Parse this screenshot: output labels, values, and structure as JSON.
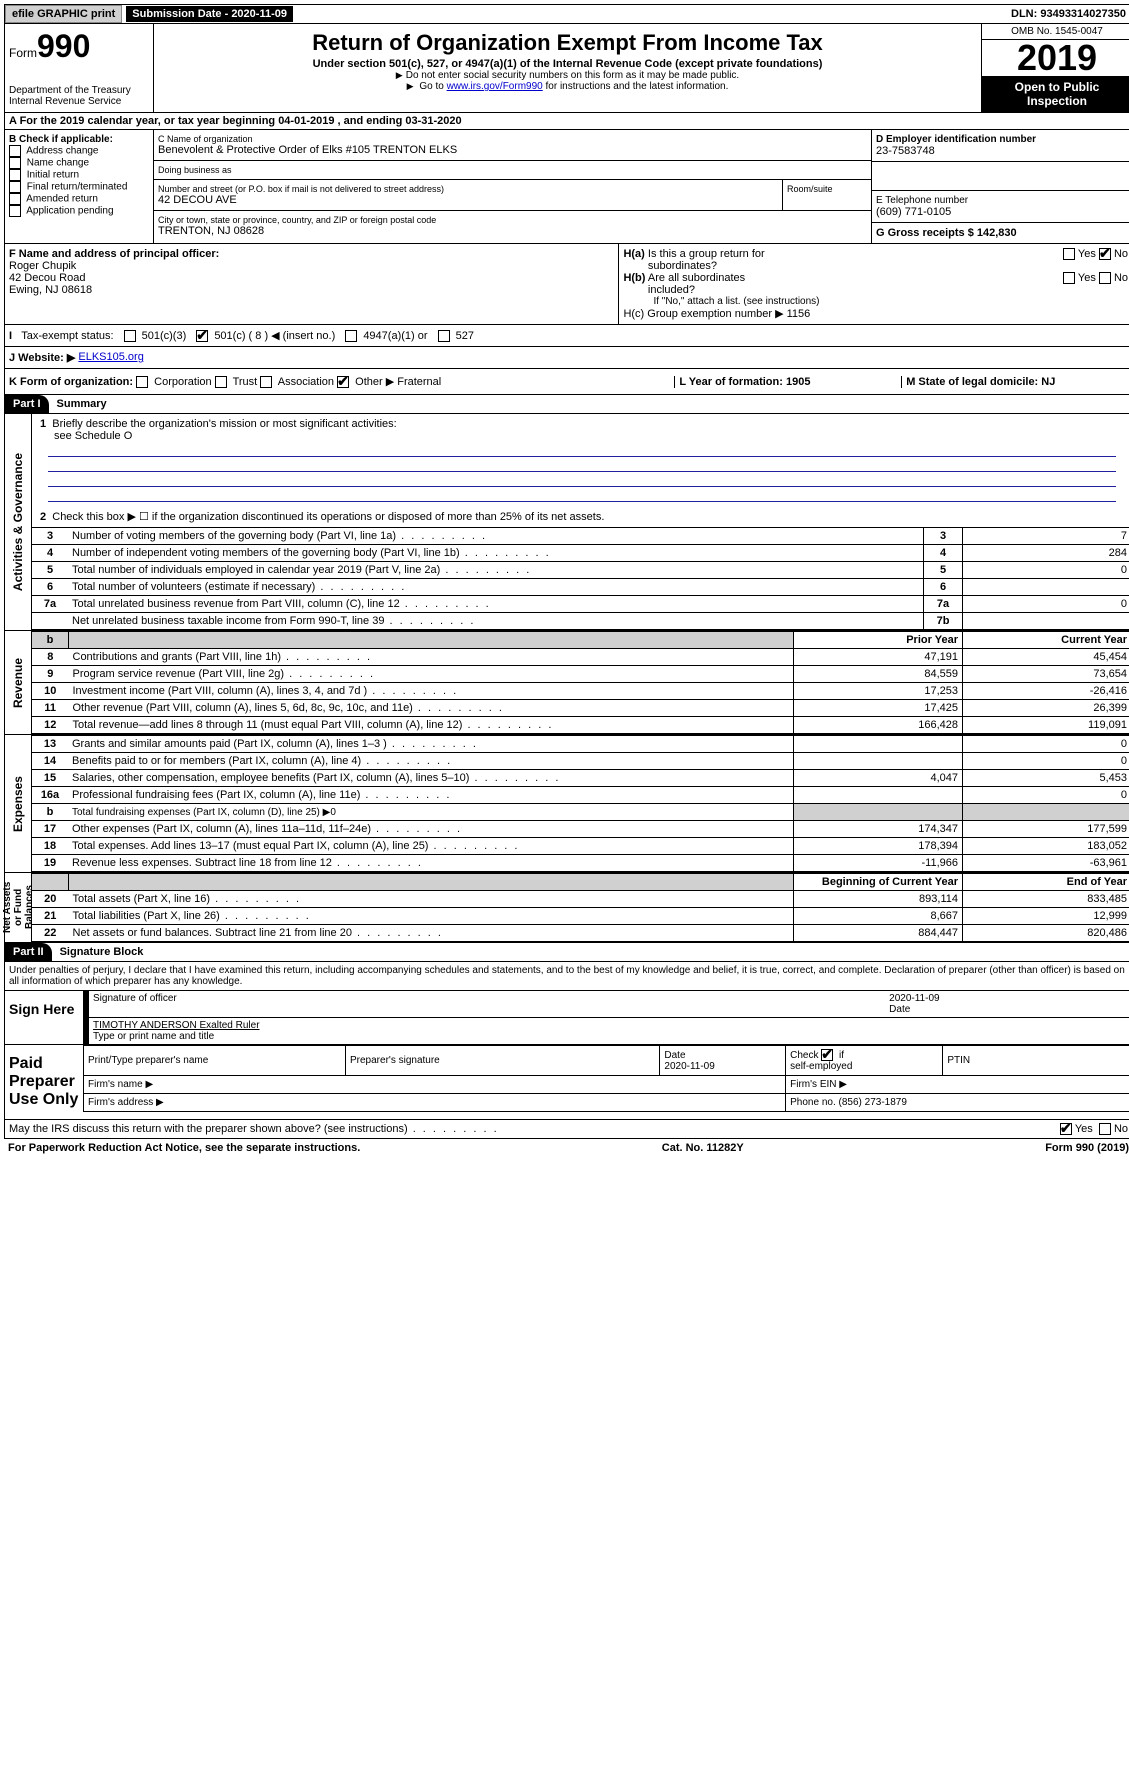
{
  "topbar": {
    "efile": "efile GRAPHIC print",
    "submission_label": "Submission Date - 2020-11-09",
    "dln": "DLN: 93493314027350"
  },
  "header": {
    "form_prefix": "Form",
    "form_number": "990",
    "dept": "Department of the Treasury\nInternal Revenue Service",
    "title": "Return of Organization Exempt From Income Tax",
    "sub1": "Under section 501(c), 527, or 4947(a)(1) of the Internal Revenue Code (except private foundations)",
    "sub2": "Do not enter social security numbers on this form as it may be made public.",
    "sub3_pre": "Go to ",
    "sub3_link": "www.irs.gov/Form990",
    "sub3_post": " for instructions and the latest information.",
    "omb": "OMB No. 1545-0047",
    "year": "2019",
    "inspection": "Open to Public Inspection"
  },
  "rowA": {
    "text": "A For the 2019 calendar year, or tax year beginning 04-01-2019   , and ending 03-31-2020"
  },
  "colB": {
    "title": "B Check if applicable:",
    "items": [
      "Address change",
      "Name change",
      "Initial return",
      "Final return/terminated",
      "Amended return",
      "Application pending"
    ]
  },
  "colC": {
    "name_label": "C Name of organization",
    "name": "Benevolent & Protective Order of Elks #105 TRENTON ELKS",
    "dba_label": "Doing business as",
    "dba": "",
    "street_label": "Number and street (or P.O. box if mail is not delivered to street address)",
    "room_label": "Room/suite",
    "street": "42 DECOU AVE",
    "city_label": "City or town, state or province, country, and ZIP or foreign postal code",
    "city": "TRENTON, NJ  08628"
  },
  "colD": {
    "ein_label": "D Employer identification number",
    "ein": "23-7583748",
    "phone_label": "E Telephone number",
    "phone": "(609) 771-0105",
    "gross_label": "G Gross receipts $ 142,830"
  },
  "rowF": {
    "label": "F  Name and address of principal officer:",
    "name": "Roger Chupik",
    "addr1": "42 Decou Road",
    "addr2": "Ewing, NJ  08618"
  },
  "rowH": {
    "ha": "H(a)  Is this a group return for subordinates?",
    "hb": "H(b)  Are all subordinates included?",
    "hb_note": "If \"No,\" attach a list. (see instructions)",
    "hc": "H(c)  Group exemption number ▶   1156"
  },
  "rowI": {
    "label": "Tax-exempt status:",
    "opts": [
      "501(c)(3)",
      "501(c) ( 8 ) ◀ (insert no.)",
      "4947(a)(1) or",
      "527"
    ]
  },
  "rowJ": {
    "label": "J   Website: ▶",
    "value": "ELKS105.org"
  },
  "rowK": {
    "label": "K Form of organization:",
    "opts": [
      "Corporation",
      "Trust",
      "Association",
      "Other ▶ Fraternal"
    ],
    "L": "L Year of formation: 1905",
    "M": "M State of legal domicile: NJ"
  },
  "part1": {
    "hdr": "Part I",
    "title": "Summary",
    "q1_label": "1",
    "q1": "Briefly describe the organization's mission or most significant activities:",
    "q1_ans": "see Schedule O",
    "q2_label": "2",
    "q2": "Check this box ▶ ☐  if the organization discontinued its operations or disposed of more than 25% of its net assets.",
    "rows_gov": [
      {
        "n": "3",
        "t": "Number of voting members of the governing body (Part VI, line 1a)",
        "dots": true,
        "l": "3",
        "v": "7"
      },
      {
        "n": "4",
        "t": "Number of independent voting members of the governing body (Part VI, line 1b)",
        "dots": true,
        "l": "4",
        "v": "284"
      },
      {
        "n": "5",
        "t": "Total number of individuals employed in calendar year 2019 (Part V, line 2a)",
        "dots": true,
        "l": "5",
        "v": "0"
      },
      {
        "n": "6",
        "t": "Total number of volunteers (estimate if necessary)",
        "dots": true,
        "l": "6",
        "v": ""
      },
      {
        "n": "7a",
        "t": "Total unrelated business revenue from Part VIII, column (C), line 12",
        "dots": true,
        "l": "7a",
        "v": "0"
      },
      {
        "n": "",
        "t": "Net unrelated business taxable income from Form 990-T, line 39",
        "dots": true,
        "l": "7b",
        "v": ""
      }
    ],
    "hdr_prior": "Prior Year",
    "hdr_current": "Current Year",
    "rows_rev": [
      {
        "n": "8",
        "t": "Contributions and grants (Part VIII, line 1h)",
        "p": "47,191",
        "c": "45,454"
      },
      {
        "n": "9",
        "t": "Program service revenue (Part VIII, line 2g)",
        "p": "84,559",
        "c": "73,654"
      },
      {
        "n": "10",
        "t": "Investment income (Part VIII, column (A), lines 3, 4, and 7d )",
        "p": "17,253",
        "c": "-26,416"
      },
      {
        "n": "11",
        "t": "Other revenue (Part VIII, column (A), lines 5, 6d, 8c, 9c, 10c, and 11e)",
        "p": "17,425",
        "c": "26,399"
      },
      {
        "n": "12",
        "t": "Total revenue—add lines 8 through 11 (must equal Part VIII, column (A), line 12)",
        "p": "166,428",
        "c": "119,091"
      }
    ],
    "rows_exp": [
      {
        "n": "13",
        "t": "Grants and similar amounts paid (Part IX, column (A), lines 1–3 )",
        "p": "",
        "c": "0"
      },
      {
        "n": "14",
        "t": "Benefits paid to or for members (Part IX, column (A), line 4)",
        "p": "",
        "c": "0"
      },
      {
        "n": "15",
        "t": "Salaries, other compensation, employee benefits (Part IX, column (A), lines 5–10)",
        "p": "4,047",
        "c": "5,453"
      },
      {
        "n": "16a",
        "t": "Professional fundraising fees (Part IX, column (A), line 11e)",
        "p": "",
        "c": "0"
      },
      {
        "n": "b",
        "t": "Total fundraising expenses (Part IX, column (D), line 25) ▶0",
        "nopc": true
      },
      {
        "n": "17",
        "t": "Other expenses (Part IX, column (A), lines 11a–11d, 11f–24e)",
        "p": "174,347",
        "c": "177,599"
      },
      {
        "n": "18",
        "t": "Total expenses. Add lines 13–17 (must equal Part IX, column (A), line 25)",
        "p": "178,394",
        "c": "183,052"
      },
      {
        "n": "19",
        "t": "Revenue less expenses. Subtract line 18 from line 12",
        "p": "-11,966",
        "c": "-63,961"
      }
    ],
    "hdr_begin": "Beginning of Current Year",
    "hdr_end": "End of Year",
    "rows_net": [
      {
        "n": "20",
        "t": "Total assets (Part X, line 16)",
        "p": "893,114",
        "c": "833,485"
      },
      {
        "n": "21",
        "t": "Total liabilities (Part X, line 26)",
        "p": "8,667",
        "c": "12,999"
      },
      {
        "n": "22",
        "t": "Net assets or fund balances. Subtract line 21 from line 20",
        "p": "884,447",
        "c": "820,486"
      }
    ],
    "side_gov": "Activities & Governance",
    "side_rev": "Revenue",
    "side_exp": "Expenses",
    "side_net": "Net Assets or Fund Balances"
  },
  "part2": {
    "hdr": "Part II",
    "title": "Signature Block",
    "perjury": "Under penalties of perjury, I declare that I have examined this return, including accompanying schedules and statements, and to the best of my knowledge and belief, it is true, correct, and complete. Declaration of preparer (other than officer) is based on all information of which preparer has any knowledge.",
    "sign_here": "Sign Here",
    "sig_officer": "Signature of officer",
    "sig_date": "2020-11-09",
    "date_label": "Date",
    "officer_name": "TIMOTHY ANDERSON Exalted Ruler",
    "type_name": "Type or print name and title",
    "paid": "Paid Preparer Use Only",
    "prep_name": "Print/Type preparer's name",
    "prep_sig": "Preparer's signature",
    "prep_date_label": "Date",
    "prep_date": "2020-11-09",
    "check_self": "Check ☑ if self-employed",
    "ptin": "PTIN",
    "firm_name": "Firm's name   ▶",
    "firm_ein": "Firm's EIN ▶",
    "firm_addr": "Firm's address ▶",
    "phone": "Phone no. (856) 273-1879",
    "discuss": "May the IRS discuss this return with the preparer shown above? (see instructions)",
    "yes": "Yes",
    "no": "No"
  },
  "footer": {
    "paperwork": "For Paperwork Reduction Act Notice, see the separate instructions.",
    "cat": "Cat. No. 11282Y",
    "form": "Form 990 (2019)"
  }
}
